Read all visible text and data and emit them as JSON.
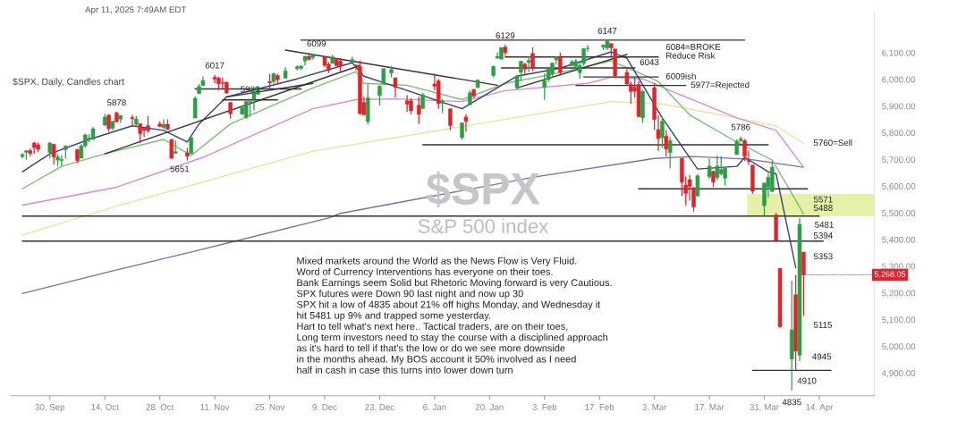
{
  "chart_data": {
    "type": "candlestick",
    "title": "$SPX",
    "subtitle": "S&P 500 index",
    "x": [
      "2024-09-23",
      "2024-09-24",
      "2024-09-25",
      "2024-09-26",
      "2024-09-27",
      "2024-09-30",
      "2024-10-01",
      "2024-10-02",
      "2024-10-03",
      "2024-10-04",
      "2024-10-07",
      "2024-10-08",
      "2024-10-09",
      "2024-10-10",
      "2024-10-11",
      "2024-10-14",
      "2024-10-15",
      "2024-10-16",
      "2024-10-17",
      "2024-10-18",
      "2024-10-21",
      "2024-10-22",
      "2024-10-23",
      "2024-10-24",
      "2024-10-25",
      "2024-10-28",
      "2024-10-29",
      "2024-10-30",
      "2024-10-31",
      "2024-11-01",
      "2024-11-04",
      "2024-11-05",
      "2024-11-06",
      "2024-11-07",
      "2024-11-08",
      "2024-11-11",
      "2024-11-12",
      "2024-11-13",
      "2024-11-14",
      "2024-11-15",
      "2024-11-18",
      "2024-11-19",
      "2024-11-20",
      "2024-11-21",
      "2024-11-22",
      "2024-11-25",
      "2024-11-26",
      "2024-11-27",
      "2024-11-29",
      "2024-12-02",
      "2024-12-03",
      "2024-12-04",
      "2024-12-05",
      "2024-12-06",
      "2024-12-09",
      "2024-12-10",
      "2024-12-11",
      "2024-12-12",
      "2024-12-13",
      "2024-12-16",
      "2024-12-17",
      "2024-12-18",
      "2024-12-19",
      "2024-12-20",
      "2024-12-23",
      "2024-12-24",
      "2024-12-26",
      "2024-12-27",
      "2024-12-30",
      "2024-12-31",
      "2025-01-02",
      "2025-01-03",
      "2025-01-06",
      "2025-01-07",
      "2025-01-08",
      "2025-01-10",
      "2025-01-13",
      "2025-01-14",
      "2025-01-15",
      "2025-01-16",
      "2025-01-17",
      "2025-01-21",
      "2025-01-22",
      "2025-01-23",
      "2025-01-24",
      "2025-01-27",
      "2025-01-28",
      "2025-01-29",
      "2025-01-30",
      "2025-01-31",
      "2025-02-03",
      "2025-02-04",
      "2025-02-05",
      "2025-02-06",
      "2025-02-07",
      "2025-02-10",
      "2025-02-11",
      "2025-02-12",
      "2025-02-13",
      "2025-02-14",
      "2025-02-18",
      "2025-02-19",
      "2025-02-20",
      "2025-02-21",
      "2025-02-24",
      "2025-02-25",
      "2025-02-26",
      "2025-02-27",
      "2025-02-28",
      "2025-03-03",
      "2025-03-04",
      "2025-03-05",
      "2025-03-06",
      "2025-03-07",
      "2025-03-10",
      "2025-03-11",
      "2025-03-12",
      "2025-03-13",
      "2025-03-14",
      "2025-03-17",
      "2025-03-18",
      "2025-03-19",
      "2025-03-20",
      "2025-03-21",
      "2025-03-24",
      "2025-03-25",
      "2025-03-26",
      "2025-03-27",
      "2025-03-28",
      "2025-03-31",
      "2025-04-01",
      "2025-04-02",
      "2025-04-03",
      "2025-04-04",
      "2025-04-07",
      "2025-04-08",
      "2025-04-09",
      "2025-04-10"
    ],
    "ohlc": [
      [
        5711,
        5725,
        5704,
        5718
      ],
      [
        5727,
        5735,
        5699,
        5732
      ],
      [
        5733,
        5741,
        5712,
        5722
      ],
      [
        5762,
        5767,
        5721,
        5745
      ],
      [
        5755,
        5764,
        5727,
        5738
      ],
      [
        5726,
        5765,
        5704,
        5762
      ],
      [
        5757,
        5758,
        5681,
        5709
      ],
      [
        5698,
        5720,
        5674,
        5709
      ],
      [
        5696,
        5716,
        5675,
        5700
      ],
      [
        5737,
        5752,
        5703,
        5751
      ],
      [
        5737,
        5740,
        5686,
        5696
      ],
      [
        5705,
        5757,
        5705,
        5751
      ],
      [
        5751,
        5796,
        5745,
        5792
      ],
      [
        5778,
        5795,
        5764,
        5780
      ],
      [
        5775,
        5822,
        5775,
        5815
      ],
      [
        5829,
        5871,
        5824,
        5859
      ],
      [
        5866,
        5870,
        5804,
        5815
      ],
      [
        5817,
        5843,
        5809,
        5843
      ],
      [
        5875,
        5878,
        5840,
        5841
      ],
      [
        5851,
        5865,
        5837,
        5865
      ],
      [
        5857,
        5867,
        5824,
        5853
      ],
      [
        5832,
        5863,
        5821,
        5851
      ],
      [
        5834,
        5834,
        5762,
        5797
      ],
      [
        5817,
        5817,
        5784,
        5809
      ],
      [
        5826,
        5862,
        5799,
        5808
      ],
      [
        5833,
        5842,
        5823,
        5823
      ],
      [
        5819,
        5850,
        5814,
        5832
      ],
      [
        5832,
        5850,
        5811,
        5813
      ],
      [
        5775,
        5775,
        5702,
        5705
      ],
      [
        5723,
        5772,
        5723,
        5729
      ],
      [
        5725,
        5742,
        5696,
        5712
      ],
      [
        5722,
        5783,
        5722,
        5782
      ],
      [
        5855,
        5936,
        5855,
        5929
      ],
      [
        5947,
        5983,
        5947,
        5973
      ],
      [
        5977,
        6012,
        5976,
        5996
      ],
      [
        6008,
        6017,
        5986,
        6001
      ],
      [
        6004,
        6009,
        5960,
        5984
      ],
      [
        5986,
        6008,
        5966,
        5985
      ],
      [
        5989,
        5993,
        5946,
        5949
      ],
      [
        5913,
        5915,
        5853,
        5871
      ],
      [
        5870,
        5902,
        5866,
        5894
      ],
      [
        5858,
        5918,
        5852,
        5917
      ],
      [
        5914,
        5921,
        5860,
        5917
      ],
      [
        5926,
        5964,
        5884,
        5949
      ],
      [
        5944,
        5973,
        5944,
        5969
      ],
      [
        5992,
        6021,
        5963,
        5987
      ],
      [
        5992,
        6025,
        5984,
        6021
      ],
      [
        6014,
        6021,
        5984,
        5999
      ],
      [
        6004,
        6045,
        6004,
        6032
      ],
      [
        6040,
        6053,
        6034,
        6047
      ],
      [
        6042,
        6050,
        6035,
        6050
      ],
      [
        6069,
        6088,
        6053,
        6086
      ],
      [
        6086,
        6099,
        6071,
        6075
      ],
      [
        6082,
        6094,
        6075,
        6090
      ],
      [
        6084,
        6088,
        6047,
        6053
      ],
      [
        6057,
        6065,
        6024,
        6034
      ],
      [
        6060,
        6092,
        6060,
        6084
      ],
      [
        6074,
        6080,
        6051,
        6051
      ],
      [
        6068,
        6079,
        6030,
        6051
      ],
      [
        6063,
        6085,
        6060,
        6074
      ],
      [
        6053,
        6057,
        6035,
        6051
      ],
      [
        6048,
        6070,
        5867,
        5872
      ],
      [
        5913,
        5935,
        5867,
        5867
      ],
      [
        5842,
        5982,
        5832,
        5931
      ],
      [
        5940,
        5978,
        5902,
        5974
      ],
      [
        5984,
        6040,
        5983,
        6040
      ],
      [
        6024,
        6049,
        6007,
        6037
      ],
      [
        6006,
        6006,
        5932,
        5970
      ],
      [
        5920,
        5941,
        5879,
        5907
      ],
      [
        5920,
        5929,
        5869,
        5882
      ],
      [
        5903,
        5935,
        5834,
        5869
      ],
      [
        5891,
        5949,
        5888,
        5942
      ],
      [
        5983,
        6022,
        5960,
        5975
      ],
      [
        5994,
        6001,
        5890,
        5909
      ],
      [
        5910,
        5927,
        5874,
        5918
      ],
      [
        5890,
        5890,
        5809,
        5827
      ],
      [
        5782,
        5838,
        5773,
        5837
      ],
      [
        5859,
        5870,
        5805,
        5843
      ],
      [
        5905,
        5960,
        5905,
        5950
      ],
      [
        5962,
        5964,
        5930,
        5937
      ],
      [
        5969,
        6000,
        5969,
        5997
      ],
      [
        6014,
        6051,
        6007,
        6049
      ],
      [
        6081,
        6100,
        6076,
        6086
      ],
      [
        6076,
        6119,
        6074,
        6119
      ],
      [
        6121,
        6129,
        6088,
        6101
      ],
      [
        5969,
        6017,
        5962,
        6012
      ],
      [
        6027,
        6069,
        5994,
        6068
      ],
      [
        6057,
        6062,
        6020,
        6039
      ],
      [
        6063,
        6086,
        6027,
        6071
      ],
      [
        6097,
        6121,
        6030,
        6041
      ],
      [
        5970,
        6022,
        5923,
        5995
      ],
      [
        5999,
        6042,
        5990,
        6038
      ],
      [
        6021,
        6062,
        6007,
        6061
      ],
      [
        6073,
        6084,
        6055,
        6084
      ],
      [
        6083,
        6101,
        6019,
        6026
      ],
      [
        6052,
        6073,
        6048,
        6066
      ],
      [
        6049,
        6076,
        6043,
        6068
      ],
      [
        6025,
        6064,
        6003,
        6052
      ],
      [
        6060,
        6116,
        6051,
        6115
      ],
      [
        6115,
        6128,
        6104,
        6115
      ],
      [
        6121,
        6130,
        6110,
        6129
      ],
      [
        6117,
        6147,
        6111,
        6144
      ],
      [
        6134,
        6135,
        6086,
        6118
      ],
      [
        6114,
        6114,
        6008,
        6013
      ],
      [
        6026,
        6044,
        5977,
        5983
      ],
      [
        5982,
        5992,
        5908,
        5955
      ],
      [
        5971,
        6009,
        5932,
        5956
      ],
      [
        5981,
        5994,
        5858,
        5861
      ],
      [
        5856,
        5959,
        5837,
        5955
      ],
      [
        5969,
        5986,
        5810,
        5850
      ],
      [
        5812,
        5865,
        5732,
        5778
      ],
      [
        5782,
        5860,
        5743,
        5843
      ],
      [
        5787,
        5809,
        5711,
        5739
      ],
      [
        5726,
        5783,
        5666,
        5770
      ],
      [
        5705,
        5705,
        5564,
        5615
      ],
      [
        5604,
        5636,
        5528,
        5573
      ],
      [
        5624,
        5642,
        5546,
        5599
      ],
      [
        5594,
        5597,
        5505,
        5522
      ],
      [
        5563,
        5645,
        5563,
        5639
      ],
      [
        5635,
        5704,
        5628,
        5675
      ],
      [
        5655,
        5659,
        5597,
        5615
      ],
      [
        5632,
        5715,
        5622,
        5675
      ],
      [
        5646,
        5711,
        5641,
        5663
      ],
      [
        5630,
        5670,
        5603,
        5668
      ],
      [
        5718,
        5775,
        5718,
        5768
      ],
      [
        5771,
        5786,
        5764,
        5777
      ],
      [
        5771,
        5777,
        5695,
        5712
      ],
      [
        5696,
        5733,
        5680,
        5693
      ],
      [
        5679,
        5679,
        5572,
        5581
      ],
      [
        5527,
        5612,
        5488,
        5612
      ],
      [
        5597,
        5650,
        5558,
        5633
      ],
      [
        5580,
        5695,
        5578,
        5671
      ],
      [
        5492,
        5500,
        5390,
        5397
      ],
      [
        5292,
        5293,
        5069,
        5074
      ],
      [
        4953,
        5246,
        4835,
        5062
      ],
      [
        5193,
        5268,
        4910,
        4982
      ],
      [
        4967,
        5481,
        4945,
        5457
      ],
      [
        5353,
        5353,
        5115,
        5268.05
      ]
    ],
    "colors": [
      "#2e9e44",
      "#2e9e44",
      "#e0242c",
      "#e0242c",
      "#e0242c",
      "#2e9e44",
      "#e0242c",
      "#2e9e44",
      "#2e9e44",
      "#2e9e44",
      "#e0242c",
      "#2e9e44",
      "#2e9e44",
      "#2e9e44",
      "#2e9e44",
      "#2e9e44",
      "#e0242c",
      "#2e9e44",
      "#e0242c",
      "#2e9e44",
      "#e0242c",
      "#2e9e44",
      "#e0242c",
      "#e0242c",
      "#e0242c",
      "#e0242c",
      "#2e9e44",
      "#e0242c",
      "#e0242c",
      "#2e9e44",
      "#e0242c",
      "#2e9e44",
      "#2e9e44",
      "#2e9e44",
      "#2e9e44",
      "#e0242c",
      "#e0242c",
      "#e0242c",
      "#e0242c",
      "#e0242c",
      "#2e9e44",
      "#2e9e44",
      "#2e9e44",
      "#2e9e44",
      "#2e9e44",
      "#e0242c",
      "#2e9e44",
      "#e0242c",
      "#2e9e44",
      "#2e9e44",
      "#2e9e44",
      "#2e9e44",
      "#e0242c",
      "#2e9e44",
      "#e0242c",
      "#e0242c",
      "#2e9e44",
      "#e0242c",
      "#e0242c",
      "#2e9e44",
      "#e0242c",
      "#e0242c",
      "#e0242c",
      "#2e9e44",
      "#2e9e44",
      "#2e9e44",
      "#2e9e44",
      "#e0242c",
      "#e0242c",
      "#e0242c",
      "#e0242c",
      "#2e9e44",
      "#e0242c",
      "#e0242c",
      "#2e9e44",
      "#e0242c",
      "#2e9e44",
      "#e0242c",
      "#2e9e44",
      "#e0242c",
      "#2e9e44",
      "#2e9e44",
      "#2e9e44",
      "#2e9e44",
      "#e0242c",
      "#2e9e44",
      "#2e9e44",
      "#e0242c",
      "#2e9e44",
      "#e0242c",
      "#2e9e44",
      "#2e9e44",
      "#2e9e44",
      "#2e9e44",
      "#e0242c",
      "#2e9e44",
      "#2e9e44",
      "#2e9e44",
      "#2e9e44",
      "#2e9e44",
      "#2e9e44",
      "#2e9e44",
      "#e0242c",
      "#e0242c",
      "#e0242c",
      "#e0242c",
      "#e0242c",
      "#e0242c",
      "#2e9e44",
      "#e0242c",
      "#e0242c",
      "#2e9e44",
      "#e0242c",
      "#2e9e44",
      "#e0242c",
      "#e0242c",
      "#e0242c",
      "#e0242c",
      "#2e9e44",
      "#2e9e44",
      "#e0242c",
      "#2e9e44",
      "#2e9e44",
      "#2e9e44",
      "#2e9e44",
      "#2e9e44",
      "#e0242c",
      "#e0242c",
      "#e0242c",
      "#2e9e44",
      "#2e9e44",
      "#2e9e44",
      "#e0242c",
      "#e0242c",
      "#2e9e44",
      "#e0242c",
      "#2e9e44",
      "#e0242c"
    ],
    "series": [
      {
        "type": "line",
        "color": "#7272b0",
        "x": [
          "2024-09-23",
          "2024-10-15",
          "2024-11-06",
          "2024-12-10",
          "2024-12-13",
          "2025-01-31",
          "2025-03-03",
          "2025-03-13",
          "2025-03-27",
          "2025-04-10"
        ],
        "values": [
          5198,
          5279,
          5357,
          5481,
          5498,
          5633,
          5704,
          5711,
          5701,
          5671
        ]
      },
      {
        "type": "line",
        "color": "#ece39a",
        "x": [
          "2024-09-23",
          "2024-10-17",
          "2024-12-06",
          "2025-01-13",
          "2025-02-20",
          "2025-03-04",
          "2025-03-24",
          "2025-04-03",
          "2025-04-10"
        ],
        "values": [
          5417,
          5525,
          5731,
          5823,
          5917,
          5910,
          5856,
          5826,
          5760
        ]
      },
      {
        "type": "line",
        "color": "#d98ad2",
        "x": [
          "2024-09-23",
          "2024-10-17",
          "2024-11-08",
          "2024-12-06",
          "2024-12-17",
          "2024-12-27",
          "2025-01-13",
          "2025-01-24",
          "2025-02-14",
          "2025-02-20",
          "2025-02-28",
          "2025-03-07",
          "2025-03-24",
          "2025-04-03",
          "2025-04-10"
        ],
        "values": [
          5529,
          5596,
          5708,
          5890,
          5924,
          5927,
          5917,
          5958,
          5985,
          6008,
          6002,
          5958,
          5856,
          5809,
          5671
        ]
      },
      {
        "type": "line",
        "color": "#77c06f",
        "x": [
          "2024-09-23",
          "2024-10-03",
          "2024-10-14",
          "2024-10-29",
          "2024-11-05",
          "2024-11-15",
          "2024-12-06",
          "2024-12-17",
          "2024-12-19",
          "2024-12-30",
          "2025-01-13",
          "2025-01-24",
          "2025-02-05",
          "2025-02-20",
          "2025-02-27",
          "2025-03-04",
          "2025-03-12",
          "2025-03-24",
          "2025-04-02",
          "2025-04-07",
          "2025-04-10"
        ],
        "values": [
          5590,
          5674,
          5721,
          5775,
          5715,
          5833,
          5968,
          6029,
          5985,
          5978,
          5924,
          5985,
          6019,
          6069,
          6025,
          5992,
          5867,
          5765,
          5698,
          5573,
          5495
        ]
      },
      {
        "type": "line",
        "color": "#3b3f7a",
        "x": [
          "2024-09-23",
          "2024-09-30",
          "2024-10-10",
          "2024-10-21",
          "2024-10-29",
          "2024-11-04",
          "2024-11-07",
          "2024-11-14",
          "2024-12-02",
          "2024-12-16",
          "2024-12-19",
          "2024-12-26",
          "2025-01-13",
          "2025-01-27",
          "2025-02-07",
          "2025-02-20",
          "2025-02-24",
          "2025-03-05",
          "2025-03-14",
          "2025-03-24",
          "2025-03-26",
          "2025-04-01",
          "2025-04-03",
          "2025-04-08"
        ],
        "values": [
          5654,
          5721,
          5775,
          5826,
          5809,
          5765,
          5833,
          5934,
          6002,
          6062,
          6012,
          5978,
          5890,
          6012,
          6042,
          6103,
          6079,
          5856,
          5664,
          5674,
          5708,
          5654,
          5647,
          5296
        ]
      },
      {
        "type": "line",
        "color": "#333333",
        "x": [
          "2024-12-03",
          "2025-03-26"
        ],
        "values": [
          6147,
          6147
        ]
      },
      {
        "type": "line",
        "color": "#333333",
        "x": [
          "2025-01-24",
          "2025-03-04"
        ],
        "values": [
          6084,
          6084
        ]
      },
      {
        "type": "line",
        "color": "#333333",
        "x": [
          "2025-01-23",
          "2025-02-26"
        ],
        "values": [
          6043,
          6043
        ]
      },
      {
        "type": "line",
        "color": "#333333",
        "x": [
          "2025-02-13",
          "2025-03-04"
        ],
        "values": [
          6009,
          6009
        ]
      },
      {
        "type": "line",
        "color": "#333333",
        "x": [
          "2025-02-11",
          "2025-03-11"
        ],
        "values": [
          5977,
          5977
        ]
      },
      {
        "type": "line",
        "color": "#333333",
        "x": [
          "2024-11-06",
          "2024-12-03"
        ],
        "values": [
          5964,
          5964
        ]
      },
      {
        "type": "line",
        "color": "#333333",
        "x": [
          "2024-11-13",
          "2024-11-27"
        ],
        "values": [
          5923,
          5923
        ]
      },
      {
        "type": "line",
        "color": "#333333",
        "x": [
          "2024-10-14",
          "2024-12-18"
        ],
        "values": [
          5721,
          6052
        ]
      },
      {
        "type": "line",
        "color": "#333333",
        "x": [
          "2024-11-14",
          "2024-12-06"
        ],
        "values": [
          5934,
          5985
        ]
      },
      {
        "type": "line",
        "color": "#333333",
        "x": [
          "2024-11-29",
          "2025-01-22"
        ],
        "values": [
          6110,
          5978
        ]
      },
      {
        "type": "line",
        "color": "#333333",
        "x": [
          "2025-01-27",
          "2025-02-24"
        ],
        "values": [
          5968,
          6093
        ]
      },
      {
        "type": "line",
        "color": "#333333",
        "x": [
          "2025-01-03",
          "2025-04-01"
        ],
        "values": [
          5755,
          5755
        ]
      },
      {
        "type": "line",
        "color": "#333333",
        "x": [
          "2025-02-27",
          "2025-04-11"
        ],
        "values": [
          5590,
          5590
        ]
      },
      {
        "type": "line",
        "color": "#333333",
        "x": [
          "2024-09-23",
          "2025-04-14"
        ],
        "values": [
          5488,
          5488
        ]
      },
      {
        "type": "line",
        "color": "#333333",
        "x": [
          "2024-09-23",
          "2025-04-15"
        ],
        "values": [
          5394,
          5394
        ]
      },
      {
        "type": "line",
        "color": "#333333",
        "x": [
          "2025-03-28",
          "2025-04-17"
        ],
        "values": [
          4910,
          4910
        ]
      }
    ],
    "bands": [
      {
        "axis": "y",
        "from": 5488,
        "to": 5571,
        "color": "#e6f0a6"
      }
    ],
    "annotations": [
      "Apr 11, 2025 7:49AM EDT",
      "$SPX, Daily, Candles chart",
      "Mixed markets around the World as the News Flow is Very Fluid.\nWord of Currency Interventions has everyone on their toes.\nBank Earnings seem Solid but Rhetoric Moving forward is very Cautious.\nSPX futures were Down 90 last night and now up 30\nSPX hit a low of 4835 about 21% off highs Monday, and Wednesday it\nhit 5481 up 9% and trapped some yesterday.\nHart to tell what's next here.. Tactical traders, are on their toes,\nLong term investors need to stay the course with a disciplined approach\nas it's hard to tell if that's the low or do we see more downside\nin the months ahead. My BOS account it 50% involved as I need\nhalf in cash in case this turns into lower down turn",
      "5651",
      {
        "text": "6099",
        "x": "2024-12-05",
        "y": 6099
      },
      {
        "text": "6129",
        "x": "2025-01-24",
        "y": 6129
      },
      {
        "text": "6147",
        "x": "2025-02-19",
        "y": 6147
      },
      {
        "text": "6084=BROKE\nReduce Risk",
        "x": "2025-03-04",
        "y": 6084
      },
      {
        "text": "6043",
        "x": "2025-02-26",
        "y": 6043
      },
      {
        "text": "6009ish",
        "x": "2025-03-04",
        "y": 6009
      },
      {
        "text": "5977=Rejected",
        "x": "2025-03-11",
        "y": 5977
      },
      {
        "text": "6017",
        "x": "2024-11-11",
        "y": 6017
      },
      {
        "text": "5923",
        "x": "2024-11-20",
        "y": 5923
      },
      {
        "text": "5878",
        "x": "2024-10-17",
        "y": 5878
      },
      {
        "text": "5786",
        "x": "2025-03-25",
        "y": 5786
      },
      {
        "text": "5760=Sell",
        "x": "2025-04-10",
        "y": 5760
      },
      {
        "text": "5571",
        "x": "2025-04-10",
        "y": 5571
      },
      {
        "text": "5488",
        "x": "2025-04-10",
        "y": 5488
      },
      {
        "text": "5481",
        "x": "2025-04-09",
        "y": 5481
      },
      {
        "text": "5394",
        "x": "2025-04-10",
        "y": 5394
      },
      {
        "text": "5353",
        "x": "2025-04-10",
        "y": 5353
      },
      {
        "text": "5115",
        "x": "2025-04-10",
        "y": 5115
      },
      {
        "text": "4945",
        "x": "2025-04-09",
        "y": 4945
      },
      {
        "text": "4910",
        "x": "2025-04-09",
        "y": 4910
      },
      {
        "text": "4835",
        "x": "2025-04-07",
        "y": 4835
      },
      {
        "text": "5,268.05",
        "x": "2025-04-10",
        "y": 5268.05
      }
    ],
    "xlim": [
      "2024-09-20",
      "2025-04-28"
    ],
    "xticks": [
      {
        "value": "2024-09-30",
        "label": "30. Sep"
      },
      {
        "value": "2024-10-14",
        "label": "14. Oct"
      },
      {
        "value": "2024-10-28",
        "label": "28. Oct"
      },
      {
        "value": "2024-11-11",
        "label": "11. Nov"
      },
      {
        "value": "2024-11-25",
        "label": "25. Nov"
      },
      {
        "value": "2024-12-09",
        "label": "9. Dec"
      },
      {
        "value": "2024-12-23",
        "label": "23. Dec"
      },
      {
        "value": "2025-01-06",
        "label": "6. Jan"
      },
      {
        "value": "2025-01-20",
        "label": "20. Jan"
      },
      {
        "value": "2025-02-03",
        "label": "3. Feb"
      },
      {
        "value": "2025-02-17",
        "label": "17. Feb"
      },
      {
        "value": "2025-03-03",
        "label": "3. Mar"
      },
      {
        "value": "2025-03-17",
        "label": "17. Mar"
      },
      {
        "value": "2025-03-31",
        "label": "31. Mar"
      },
      {
        "value": "2025-04-14",
        "label": "14. Apr"
      }
    ],
    "ylim": [
      4815,
      6250
    ],
    "yticks": [
      {
        "value": 4900,
        "label": "4,900.00"
      },
      {
        "value": 5000,
        "label": "5,000.00"
      },
      {
        "value": 5100,
        "label": "5,100.00"
      },
      {
        "value": 5200,
        "label": "5,200.00"
      },
      {
        "value": 5300,
        "label": "5,300.00"
      },
      {
        "value": 5400,
        "label": "5,400.00"
      },
      {
        "value": 5500,
        "label": "5,500.00"
      },
      {
        "value": 5600,
        "label": "5,600.00"
      },
      {
        "value": 5700,
        "label": "5,700.00"
      },
      {
        "value": 5800,
        "label": "5,800.00"
      },
      {
        "value": 5900,
        "label": "5,900.00"
      },
      {
        "value": 6000,
        "label": "6,000.00"
      },
      {
        "value": 6100,
        "label": "6,100.00"
      }
    ]
  }
}
